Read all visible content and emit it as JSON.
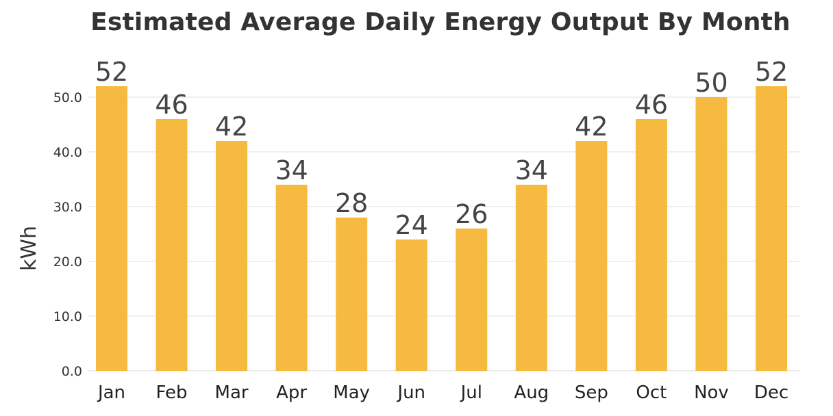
{
  "chart_data": {
    "type": "bar",
    "title": "Estimated Average Daily Energy Output By Month",
    "xlabel": "",
    "ylabel": "kWh",
    "categories": [
      "Jan",
      "Feb",
      "Mar",
      "Apr",
      "May",
      "Jun",
      "Jul",
      "Aug",
      "Sep",
      "Oct",
      "Nov",
      "Dec"
    ],
    "values": [
      52,
      46,
      42,
      34,
      28,
      24,
      26,
      34,
      42,
      46,
      50,
      52
    ],
    "value_labels": [
      "52",
      "46",
      "42",
      "34",
      "28",
      "24",
      "26",
      "34",
      "42",
      "46",
      "50",
      "52"
    ],
    "ylim": [
      0,
      55
    ],
    "yticks": [
      0,
      10,
      20,
      30,
      40,
      50
    ],
    "ytick_labels": [
      "0.0",
      "10.0",
      "20.0",
      "30.0",
      "40.0",
      "50.0"
    ],
    "grid": true,
    "legend": "none",
    "bar_color": "#F5BA3F",
    "grid_color": "#E6E6E6"
  }
}
